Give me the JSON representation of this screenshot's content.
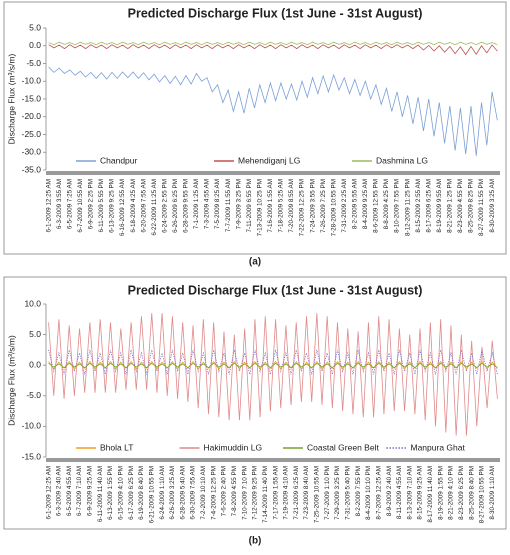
{
  "chart_data": [
    {
      "type": "line",
      "title": "Predicted Discharge Flux (1st June - 31st August)",
      "ylabel": "Discharge Flux (m³/s/m)",
      "caption": "(a)",
      "legend": "lower center",
      "categories": [
        "6-1-2009 12:25 AM",
        null,
        "6-3-2009 3:55 AM",
        null,
        "6-5-2009 7:25 AM",
        null,
        "6-7-2009 10:55 AM",
        null,
        "6-9-2009 2:25 PM",
        null,
        "6-11-2009 5:55 PM",
        null,
        "6-13-2009 9:25 PM",
        null,
        "6-16-2009 12:55 AM",
        null,
        "6-18-2009 4:25 AM",
        null,
        "6-20-2009 7:55 AM",
        null,
        "6-22-2009 11:25 AM",
        null,
        "6-24-2009 2:55 PM",
        null,
        "6-26-2009 6:25 PM",
        null,
        "6-28-2009 9:55 PM",
        null,
        "7-1-2009 1:25 AM",
        null,
        "7-3-2009 4:55 AM",
        null,
        "7-5-2009 8:25 AM",
        null,
        "7-7-2009 11:55 AM",
        null,
        "7-9-2009 3:25 PM",
        null,
        "7-11-2009 6:55 PM",
        null,
        "7-13-2009 10:25 PM",
        null,
        "7-16-2009 1:55 AM",
        null,
        "7-18-2009 5:25 AM",
        null,
        "7-20-2009 8:55 AM",
        null,
        "7-22-2009 12:25 PM",
        null,
        "7-24-2009 3:55 PM",
        null,
        "7-26-2009 7:25 PM",
        null,
        "7-28-2009 10:55 PM",
        null,
        "7-31-2009 2:25 AM",
        null,
        "8-2-2009 5:55 AM",
        null,
        "8-4-2009 9:25 AM",
        null,
        "8-6-2009 12:55 PM",
        null,
        "8-8-2009 4:25 PM",
        null,
        "8-10-2009 7:55 PM",
        null,
        "8-12-2009 11:25 PM",
        null,
        "8-15-2009 2:55 AM",
        null,
        "8-17-2009 6:25 AM",
        null,
        "8-19-2009 9:55 AM",
        null,
        "8-21-2009 1:25 PM",
        null,
        "8-23-2009 4:55 PM",
        null,
        "8-25-2009 8:25 PM",
        null,
        "8-27-2009 11:55 PM",
        null,
        "8-30-2009 3:25 AM",
        null
      ],
      "ylim": [
        -35,
        5
      ],
      "yticks": [
        {
          "value": -35,
          "label": "-35.0"
        },
        {
          "value": -30,
          "label": "-30.0"
        },
        {
          "value": -25,
          "label": "-25.0"
        },
        {
          "value": -20,
          "label": "-20.0"
        },
        {
          "value": -15,
          "label": "-15.0"
        },
        {
          "value": -10,
          "label": "-10.0"
        },
        {
          "value": -5,
          "label": "-5.0"
        },
        {
          "value": 0,
          "label": "0.0"
        },
        {
          "value": 5,
          "label": "5.0"
        }
      ],
      "series": [
        {
          "name": "Chandpur",
          "color": "#7b9fd6",
          "style": "solid",
          "values": [
            -6,
            -7.5,
            -6.3,
            -7.8,
            -6.8,
            -8.3,
            -7.2,
            -8.8,
            -7.5,
            -9.2,
            -7.6,
            -9.4,
            -7.5,
            -9.2,
            -7.4,
            -9,
            -7.4,
            -9.2,
            -7.6,
            -9.6,
            -8,
            -10.2,
            -8.4,
            -10.6,
            -8.6,
            -11,
            -8.4,
            -10.8,
            -7.8,
            -10,
            -9,
            -13,
            -11,
            -16,
            -12.5,
            -18.5,
            -13,
            -19,
            -12,
            -17.5,
            -11,
            -16,
            -10.5,
            -15.5,
            -10.5,
            -15,
            -10.8,
            -15.3,
            -10,
            -14.5,
            -9,
            -13.5,
            -8.5,
            -13,
            -8.2,
            -12.5,
            -9,
            -13.5,
            -9.5,
            -14,
            -10,
            -15,
            -11,
            -16.5,
            -12,
            -18.5,
            -13,
            -20,
            -14,
            -22,
            -14.5,
            -24,
            -15,
            -25.5,
            -16,
            -27.5,
            -17,
            -29.5,
            -17.5,
            -30.5,
            -17,
            -31,
            -16,
            -28,
            -13,
            -21
          ]
        },
        {
          "name": "Mehendiganj LG",
          "color": "#c0504d",
          "style": "solid",
          "values": [
            0.3,
            -0.6,
            0.2,
            -0.8,
            0.3,
            -0.6,
            0.2,
            -0.8,
            0.3,
            -0.6,
            0.2,
            -0.8,
            0.3,
            -0.6,
            0.2,
            -0.8,
            0.3,
            -0.6,
            0.2,
            -0.8,
            0.3,
            -0.6,
            0.2,
            -0.8,
            0.3,
            -0.6,
            0.2,
            -0.8,
            0.3,
            -0.6,
            0.2,
            -0.8,
            0.3,
            -0.6,
            0.2,
            -0.8,
            0.3,
            -0.6,
            0.2,
            -0.8,
            0.3,
            -0.6,
            0.2,
            -0.8,
            0.3,
            -0.6,
            0.2,
            -0.8,
            0.3,
            -0.6,
            0.2,
            -0.8,
            0.3,
            -0.6,
            0.2,
            -0.8,
            0.3,
            -0.6,
            0.2,
            -0.8,
            0.3,
            -0.6,
            0.2,
            -0.8,
            0.3,
            -0.6,
            0.3,
            -0.6,
            0.2,
            -0.8,
            0.2,
            -1.2,
            0.1,
            -1.5,
            0,
            -1.8,
            -0.2,
            -2.2,
            -0.3,
            -2.5,
            -0.2,
            -2.4,
            0,
            -2,
            0.2,
            -1.5
          ]
        },
        {
          "name": "Dashmina LG",
          "color": "#9bbb59",
          "style": "solid",
          "values": [
            0.9,
            0.3,
            1,
            0.4,
            0.9,
            0.3,
            1,
            0.4,
            0.9,
            0.3,
            1,
            0.4,
            0.9,
            0.3,
            1,
            0.4,
            0.9,
            0.3,
            1,
            0.4,
            0.9,
            0.3,
            1,
            0.4,
            0.9,
            0.3,
            1,
            0.4,
            0.9,
            0.3,
            1,
            0.4,
            0.9,
            0.3,
            1,
            0.4,
            0.9,
            0.3,
            1,
            0.4,
            0.9,
            0.3,
            1,
            0.4,
            0.9,
            0.3,
            1,
            0.4,
            0.9,
            0.3,
            1,
            0.4,
            0.9,
            0.3,
            1,
            0.4,
            0.9,
            0.3,
            1,
            0.4,
            0.9,
            0.3,
            1,
            0.4,
            0.9,
            0.3,
            1,
            0.4,
            0.9,
            0.3,
            1,
            0.4,
            0.9,
            0.3,
            1,
            0.4,
            0.9,
            0.3,
            1,
            0.4,
            0.9,
            0.3,
            1,
            0.4,
            0.9,
            0.3
          ]
        }
      ]
    },
    {
      "type": "line",
      "title": "Predicted Discharge Flux (1st June - 31st August)",
      "ylabel": "Discharge Flux (m³/s/m)",
      "caption": "(b)",
      "legend": "lower center",
      "categories": [
        "6-1-2009 12:25 AM",
        null,
        "6-3-2009 2:40 AM",
        null,
        "6-5-2009 4:55 AM",
        null,
        "6-7-2009 7:10 AM",
        null,
        "6-9-2009 9:25 AM",
        null,
        "6-11-2009 11:40 AM",
        null,
        "6-13-2009 1:55 PM",
        null,
        "6-15-2009 4:10 PM",
        null,
        "6-17-2009 6:25 PM",
        null,
        "6-19-2009 8:40 PM",
        null,
        "6-21-2009 10:55 PM",
        null,
        "6-24-2009 1:10 AM",
        null,
        "6-26-2009 3:25 AM",
        null,
        "6-28-2009 5:40 AM",
        null,
        "6-30-2009 7:55 AM",
        null,
        "7-2-2009 10:10 AM",
        null,
        "7-4-2009 12:25 PM",
        null,
        "7-6-2009 2:40 PM",
        null,
        "7-8-2009 4:55 PM",
        null,
        "7-10-2009 7:10 PM",
        null,
        "7-12-2009 9:25 PM",
        null,
        "7-14-2009 11:40 PM",
        null,
        "7-17-2009 1:55 AM",
        null,
        "7-19-2009 4:10 AM",
        null,
        "7-21-2009 6:25 AM",
        null,
        "7-23-2009 8:40 AM",
        null,
        "7-25-2009 10:55 AM",
        null,
        "7-27-2009 1:10 PM",
        null,
        "7-29-2009 3:25 PM",
        null,
        "7-31-2009 5:40 PM",
        null,
        "8-2-2009 7:55 PM",
        null,
        "8-4-2009 10:10 PM",
        null,
        "8-7-2009 12:25 AM",
        null,
        "8-9-2009 2:40 AM",
        null,
        "8-11-2009 4:55 AM",
        null,
        "8-13-2009 7:10 AM",
        null,
        "8-15-2009 9:25 AM",
        null,
        "8-17-2009 11:40 AM",
        null,
        "8-19-2009 1:55 PM",
        null,
        "8-21-2009 4:10 PM",
        null,
        "8-23-2009 6:25 PM",
        null,
        "8-25-2009 8:40 PM",
        null,
        "8-27-2009 10:55 PM",
        null,
        "8-30-2009 1:10 AM",
        null
      ],
      "ylim": [
        -15,
        10
      ],
      "yticks": [
        {
          "value": -15,
          "label": "-15.0"
        },
        {
          "value": -10,
          "label": "-10.0"
        },
        {
          "value": -5,
          "label": "-5.0"
        },
        {
          "value": 0,
          "label": "0.0"
        },
        {
          "value": 5,
          "label": "5.0"
        },
        {
          "value": 10,
          "label": "10.0"
        }
      ],
      "series": [
        {
          "name": "Hakimuddin LG",
          "color": "#e08a8a",
          "style": "solid",
          "values": [
            7,
            -5,
            7.5,
            -5.5,
            6.5,
            -5,
            6,
            -4.5,
            7,
            -4.5,
            7.5,
            -4.5,
            7,
            -4.5,
            6,
            -4,
            7,
            -4,
            8,
            -4,
            8.5,
            -4.5,
            8.5,
            -5,
            8,
            -5.5,
            7,
            -6,
            6.5,
            -7,
            7.5,
            -8,
            7,
            -8.5,
            5.5,
            -9,
            5,
            -9,
            6,
            -9,
            7.5,
            -8.5,
            8,
            -7.5,
            7.5,
            -7,
            6.5,
            -6.5,
            7,
            -6,
            8,
            -6,
            8.5,
            -6.5,
            8,
            -7,
            7,
            -7.5,
            6,
            -8,
            5.5,
            -8.5,
            7,
            -8.5,
            8,
            -8,
            7.5,
            -7.5,
            6,
            -7.5,
            5,
            -8,
            6,
            -9,
            7,
            -10,
            7.5,
            -11,
            6.5,
            -11.5,
            5,
            -11.5,
            4,
            -10,
            3,
            -7,
            4,
            -5.5
          ]
        },
        {
          "name": "Manpura Ghat",
          "color": "#7b6fc4",
          "style": "dotted",
          "values": [
            2.5,
            -1,
            2,
            -1.5,
            2.5,
            -1,
            2,
            -1.5,
            2.5,
            -1,
            2,
            -1.5,
            2.5,
            -1,
            2,
            -1.5,
            2.5,
            -1,
            2,
            -1.5,
            2.5,
            -1,
            2,
            -1.5,
            2.5,
            -1,
            2,
            -1.5,
            2.5,
            -1,
            2,
            -1.5,
            2.5,
            -1,
            2,
            -1.5,
            2.5,
            -1,
            2,
            -1.5,
            2.5,
            -1,
            2,
            -1.5,
            2.5,
            -1,
            2,
            -1.5,
            2.5,
            -1,
            2,
            -1.5,
            2.5,
            -1,
            2,
            -1.5,
            2.5,
            -1,
            2,
            -1.5,
            2.5,
            -1,
            2,
            -1.5,
            2.5,
            -1,
            2,
            -1.5,
            2.5,
            -1,
            2,
            -1.5,
            2.5,
            -1,
            2,
            -1.5,
            2.5,
            -1,
            2,
            -1.5,
            2.5,
            -1,
            2,
            -1.5,
            2.5,
            -1,
            2,
            -1.5
          ]
        },
        {
          "name": "Bhola LT",
          "color": "#f0a020",
          "style": "solid",
          "values": [
            0.6,
            -0.6,
            0.5,
            -0.5,
            0.6,
            -0.6,
            0.5,
            -0.5,
            0.6,
            -0.6,
            0.5,
            -0.5,
            0.6,
            -0.6,
            0.5,
            -0.5,
            0.6,
            -0.6,
            0.5,
            -0.5,
            0.6,
            -0.6,
            0.5,
            -0.5,
            0.6,
            -0.6,
            0.5,
            -0.5,
            0.6,
            -0.6,
            0.5,
            -0.5,
            0.6,
            -0.6,
            0.5,
            -0.5,
            0.6,
            -0.6,
            0.5,
            -0.5,
            0.6,
            -0.6,
            0.5,
            -0.5,
            0.6,
            -0.6,
            0.5,
            -0.5,
            0.6,
            -0.6,
            0.5,
            -0.5,
            0.6,
            -0.6,
            0.5,
            -0.5,
            0.6,
            -0.6,
            0.5,
            -0.5,
            0.6,
            -0.6,
            0.5,
            -0.5,
            0.6,
            -0.6,
            0.5,
            -0.5,
            0.6,
            -0.6,
            0.5,
            -0.5,
            0.6,
            -0.6,
            0.5,
            -0.5,
            0.6,
            -0.6,
            0.5,
            -0.5,
            0.6,
            -0.6,
            0.5,
            -0.5,
            0.6,
            -0.6,
            0.5,
            -0.5
          ]
        },
        {
          "name": "Coastal Green Belt",
          "color": "#76a22e",
          "style": "solid",
          "values": [
            0.3,
            -0.3,
            0.2,
            -0.4,
            0.3,
            -0.3,
            0.2,
            -0.4,
            0.3,
            -0.3,
            0.2,
            -0.4,
            0.3,
            -0.3,
            0.2,
            -0.4,
            0.3,
            -0.3,
            0.2,
            -0.4,
            0.3,
            -0.3,
            0.2,
            -0.4,
            0.3,
            -0.3,
            0.2,
            -0.4,
            0.3,
            -0.3,
            0.2,
            -0.4,
            0.3,
            -0.3,
            0.2,
            -0.4,
            0.3,
            -0.3,
            0.2,
            -0.4,
            0.3,
            -0.3,
            0.2,
            -0.4,
            0.3,
            -0.3,
            0.2,
            -0.4,
            0.3,
            -0.3,
            0.2,
            -0.4,
            0.3,
            -0.3,
            0.2,
            -0.4,
            0.3,
            -0.3,
            0.2,
            -0.4,
            0.3,
            -0.3,
            0.2,
            -0.4,
            0.3,
            -0.3,
            0.2,
            -0.4,
            0.3,
            -0.3,
            0.2,
            -0.4,
            0.3,
            -0.3,
            0.2,
            -0.4,
            0.3,
            -0.3,
            0.2,
            -0.4,
            0.3,
            -0.3,
            0.2,
            -0.4,
            0.3,
            -0.3,
            0.2,
            -0.4
          ]
        }
      ],
      "legend_order": [
        "Bhola LT",
        "Hakimuddin LG",
        "Coastal Green Belt",
        "Manpura Ghat"
      ]
    }
  ]
}
